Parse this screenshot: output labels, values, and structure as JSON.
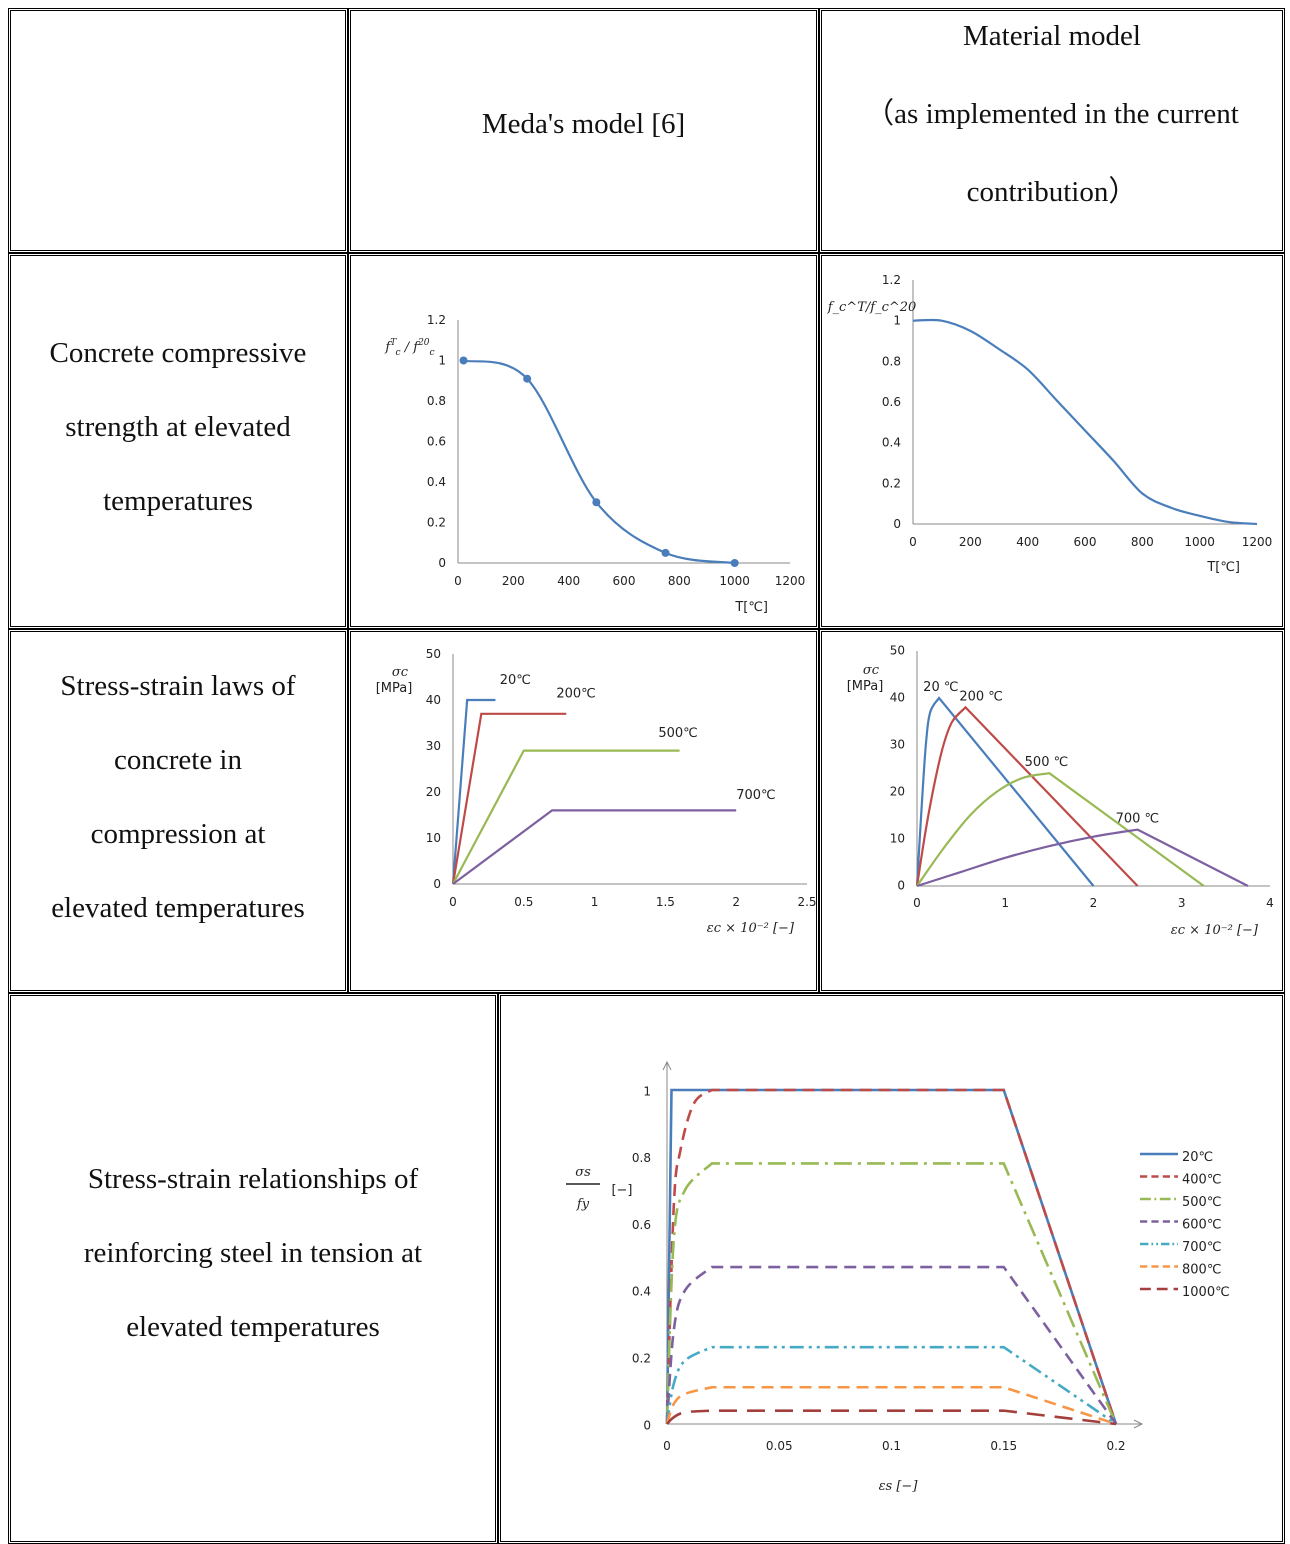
{
  "table": {
    "header": {
      "col1": "",
      "col2": "Meda's model [6]",
      "col3_lines": [
        "Material model",
        "（as implemented in the current",
        "contribution）"
      ]
    },
    "rows": [
      {
        "label_lines": [
          "Concrete compressive",
          "strength at elevated",
          "temperatures"
        ]
      },
      {
        "label_lines": [
          "Stress-strain laws of",
          "concrete in",
          "compression at",
          "elevated temperatures"
        ]
      },
      {
        "label_lines": [
          "Stress-strain relationships of",
          "reinforcing steel in tension at",
          "elevated temperatures"
        ]
      }
    ]
  },
  "colors": {
    "blue": "#4a7ebb",
    "red": "#be4b48",
    "green": "#98b954",
    "purple": "#7d60a0",
    "cyan": "#46aac5",
    "orange": "#f79646",
    "darkred": "#a33f3c",
    "axis": "#888888"
  },
  "chart_data": [
    {
      "id": "meda_strength",
      "type": "line",
      "ylabel": "f_c^T / f_c^20",
      "xlabel": "T[℃]",
      "xlim": [
        0,
        1200
      ],
      "ylim": [
        0,
        1.2
      ],
      "xticks": [
        "0",
        "200",
        "400",
        "600",
        "800",
        "1000",
        "1200"
      ],
      "yticks": [
        "0",
        "0.2",
        "0.4",
        "0.6",
        "0.8",
        "1",
        "1.2"
      ],
      "series": [
        {
          "x": [
            20,
            250,
            500,
            750,
            1000
          ],
          "y": [
            1.0,
            0.91,
            0.3,
            0.05,
            0.0
          ],
          "markers": true
        }
      ]
    },
    {
      "id": "model_strength",
      "type": "line",
      "ylabel": "f_c^T/f_c^20",
      "xlabel": "T[℃]",
      "xlim": [
        0,
        1200
      ],
      "ylim": [
        0,
        1.2
      ],
      "xticks": [
        "0",
        "200",
        "400",
        "600",
        "800",
        "1000",
        "1200"
      ],
      "yticks": [
        "0",
        "0.2",
        "0.4",
        "0.6",
        "0.8",
        "1",
        "1.2"
      ],
      "series": [
        {
          "x": [
            0,
            100,
            200,
            300,
            400,
            500,
            600,
            700,
            800,
            900,
            1000,
            1100,
            1200
          ],
          "y": [
            1.0,
            1.0,
            0.95,
            0.86,
            0.76,
            0.61,
            0.46,
            0.31,
            0.15,
            0.08,
            0.04,
            0.01,
            0.0
          ]
        }
      ]
    },
    {
      "id": "meda_stress_strain",
      "type": "line",
      "ylabel": "σc [MPa]",
      "xlabel": "εc × 10⁻² [−]",
      "xlim": [
        0,
        2.5
      ],
      "ylim": [
        0,
        50
      ],
      "xticks": [
        "0",
        "0.5",
        "1",
        "1.5",
        "2",
        "2.5"
      ],
      "yticks": [
        "0",
        "10",
        "20",
        "30",
        "40",
        "50"
      ],
      "series": [
        {
          "name": "20℃",
          "x": [
            0,
            0.1,
            0.3
          ],
          "y": [
            0,
            40,
            40
          ]
        },
        {
          "name": "200℃",
          "x": [
            0,
            0.2,
            0.8
          ],
          "y": [
            0,
            37,
            37
          ]
        },
        {
          "name": "500℃",
          "x": [
            0,
            0.5,
            1.6
          ],
          "y": [
            0,
            29,
            29
          ]
        },
        {
          "name": "700℃",
          "x": [
            0,
            0.7,
            2.0
          ],
          "y": [
            0,
            16,
            16
          ]
        }
      ]
    },
    {
      "id": "model_stress_strain",
      "type": "line",
      "ylabel": "σc [MPa]",
      "xlabel": "εc × 10⁻² [−]",
      "xlim": [
        0,
        4
      ],
      "ylim": [
        0,
        50
      ],
      "xticks": [
        "0",
        "1",
        "2",
        "3",
        "4"
      ],
      "yticks": [
        "0",
        "10",
        "20",
        "30",
        "40",
        "50"
      ],
      "series": [
        {
          "name": "20 ℃",
          "x": [
            0,
            0.05,
            0.1,
            0.15,
            0.25,
            2.0
          ],
          "y": [
            0,
            16,
            30,
            37,
            40,
            0
          ]
        },
        {
          "name": "200 ℃",
          "x": [
            0,
            0.1,
            0.2,
            0.3,
            0.4,
            0.55,
            2.5
          ],
          "y": [
            0,
            12,
            22,
            30,
            35,
            38,
            0
          ]
        },
        {
          "name": "500 ℃",
          "x": [
            0,
            0.3,
            0.6,
            0.9,
            1.2,
            1.5,
            3.25
          ],
          "y": [
            0,
            8,
            15,
            20,
            23,
            24,
            0
          ]
        },
        {
          "name": "700 ℃",
          "x": [
            0,
            0.5,
            1.0,
            1.5,
            2.0,
            2.5,
            3.75
          ],
          "y": [
            0,
            3,
            6,
            8.5,
            10.5,
            12,
            0
          ]
        }
      ]
    },
    {
      "id": "steel_stress_strain",
      "type": "line",
      "ylabel": "σs/fy [−]",
      "xlabel": "εs [−]",
      "xlim": [
        0,
        0.2
      ],
      "ylim": [
        0,
        1
      ],
      "xticks": [
        "0",
        "0.05",
        "0.1",
        "0.15",
        "0.2"
      ],
      "yticks": [
        "0",
        "0.2",
        "0.4",
        "0.6",
        "0.8",
        "1"
      ],
      "legend_position": "right",
      "series": [
        {
          "name": "20℃",
          "dash": "solid",
          "x": [
            0,
            0.002,
            0.15,
            0.2
          ],
          "y": [
            0,
            1.0,
            1.0,
            0
          ]
        },
        {
          "name": "400℃",
          "dash": "dash",
          "x": [
            0,
            0.003,
            0.006,
            0.012,
            0.02,
            0.15,
            0.2
          ],
          "y": [
            0,
            0.65,
            0.82,
            0.96,
            1.0,
            1.0,
            0
          ]
        },
        {
          "name": "500℃",
          "dash": "dashdot",
          "x": [
            0,
            0.003,
            0.008,
            0.02,
            0.15,
            0.2
          ],
          "y": [
            0,
            0.55,
            0.7,
            0.78,
            0.78,
            0
          ]
        },
        {
          "name": "600℃",
          "dash": "dash",
          "x": [
            0,
            0.003,
            0.008,
            0.02,
            0.15,
            0.2
          ],
          "y": [
            0,
            0.28,
            0.4,
            0.47,
            0.47,
            0
          ]
        },
        {
          "name": "700℃",
          "dash": "dashdotdot",
          "x": [
            0,
            0.003,
            0.008,
            0.02,
            0.15,
            0.2
          ],
          "y": [
            0,
            0.12,
            0.19,
            0.23,
            0.23,
            0
          ]
        },
        {
          "name": "800℃",
          "dash": "dash",
          "x": [
            0,
            0.003,
            0.008,
            0.02,
            0.15,
            0.2
          ],
          "y": [
            0,
            0.06,
            0.09,
            0.11,
            0.11,
            0
          ]
        },
        {
          "name": "1000℃",
          "dash": "longdash",
          "x": [
            0,
            0.003,
            0.008,
            0.02,
            0.15,
            0.2
          ],
          "y": [
            0,
            0.02,
            0.035,
            0.04,
            0.04,
            0
          ]
        }
      ]
    }
  ]
}
